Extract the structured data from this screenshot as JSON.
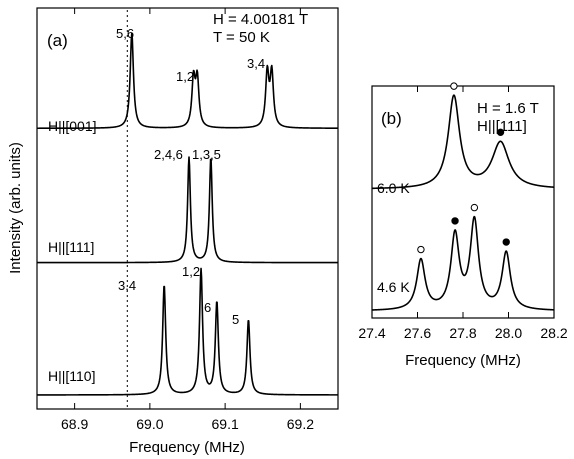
{
  "chart_data": [
    {
      "panel": "(a)",
      "type": "line",
      "xlabel": "Frequency (MHz)",
      "ylabel": "Intensity (arb. units)",
      "xlim": [
        68.85,
        69.25
      ],
      "x_ticks": [
        "68.9",
        "69.0",
        "69.1",
        "69.2"
      ],
      "x_tick_values": [
        68.9,
        69.0,
        69.1,
        69.2
      ],
      "annotation": [
        "H = 4.00181 T",
        "T = 50 K"
      ],
      "reference_line_x": 68.97,
      "series": [
        {
          "name": "H||[001]",
          "baseline": 0.7,
          "width": 0.0026,
          "peaks": [
            {
              "label": "5,6",
              "x": 68.976,
              "height": 1.0
            },
            {
              "label": "1,2",
              "x": 69.058,
              "height": 0.5
            },
            {
              "label": "",
              "x": 69.063,
              "height": 0.5
            },
            {
              "label": "3,4",
              "x": 69.156,
              "height": 0.57
            },
            {
              "label": "",
              "x": 69.162,
              "height": 0.57
            }
          ]
        },
        {
          "name": "H||[111]",
          "baseline": 0.365,
          "width": 0.0022,
          "peaks": [
            {
              "label": "2,4,6",
              "x": 69.052,
              "height": 1.0
            },
            {
              "label": "1,3,5",
              "x": 69.081,
              "height": 1.0
            }
          ]
        },
        {
          "name": "H||[110]",
          "baseline": 0.035,
          "width": 0.0024,
          "peaks": [
            {
              "label": "3,4",
              "x": 69.019,
              "height": 0.88
            },
            {
              "label": "1,2",
              "x": 69.068,
              "height": 1.0
            },
            {
              "label": "6",
              "x": 69.089,
              "height": 0.74
            },
            {
              "label": "5",
              "x": 69.131,
              "height": 0.6
            }
          ]
        }
      ]
    },
    {
      "panel": "(b)",
      "type": "line",
      "xlabel": "Frequency (MHz)",
      "xlim": [
        27.4,
        28.2
      ],
      "x_ticks": [
        "27.4",
        "27.6",
        "27.8",
        "28.0",
        "28.2"
      ],
      "x_tick_values": [
        27.4,
        27.6,
        27.8,
        28.0,
        28.2
      ],
      "annotation": [
        "H = 1.6 T",
        "H||[111]"
      ],
      "series": [
        {
          "name": "6.0 K",
          "baseline": 0.555,
          "peaks": [
            {
              "marker": "open",
              "x": 27.76,
              "height": 1.0,
              "width": 0.03
            },
            {
              "marker": "filled",
              "x": 27.965,
              "height": 0.5,
              "width": 0.045
            }
          ]
        },
        {
          "name": "4.6 K",
          "baseline": 0.03,
          "peaks": [
            {
              "marker": "open",
              "x": 27.615,
              "height": 0.5,
              "width": 0.022
            },
            {
              "marker": "filled",
              "x": 27.765,
              "height": 0.74,
              "width": 0.022
            },
            {
              "marker": "open",
              "x": 27.85,
              "height": 0.88,
              "width": 0.022
            },
            {
              "marker": "filled",
              "x": 27.99,
              "height": 0.57,
              "width": 0.022
            }
          ]
        }
      ]
    }
  ],
  "colors": {
    "line": "#000000",
    "background": "#ffffff"
  }
}
